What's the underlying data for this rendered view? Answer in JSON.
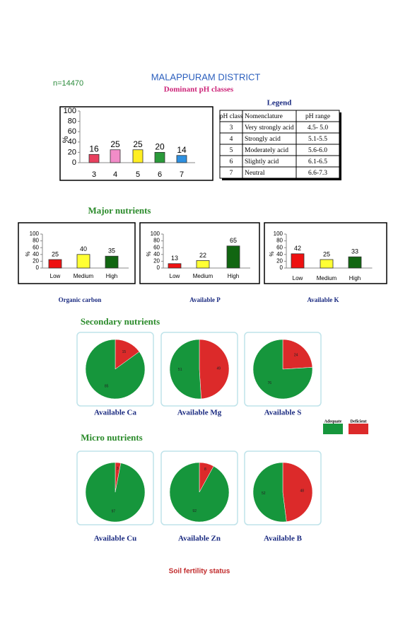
{
  "header": {
    "sample": "n=14470",
    "title": "MALAPPURAM DISTRICT",
    "subtitle": "Dominant pH classes"
  },
  "legend_table": {
    "title": "Legend",
    "columns": [
      "pH class",
      "Nomenclature",
      "pH range"
    ],
    "rows": [
      [
        "3",
        "Very strongly acid",
        "4.5- 5.0"
      ],
      [
        "4",
        "Strongly acid",
        "5.1-5.5"
      ],
      [
        "5",
        "Moderately acid",
        "5.6-6.0"
      ],
      [
        "6",
        "Slightly acid",
        "6.1-6.5"
      ],
      [
        "7",
        "Neutral",
        "6.6-7.3"
      ]
    ]
  },
  "sections": [
    "Major nutrients",
    "Secondary nutrients",
    "Micro nutrients"
  ],
  "pie_legend": {
    "labels": [
      "Adequate",
      "Deficient"
    ],
    "colors": [
      "#16963c",
      "#dc2a2a"
    ]
  },
  "footer": "Soil fertility status",
  "chart_data": [
    {
      "type": "bar",
      "categories": [
        "3",
        "4",
        "5",
        "6",
        "7"
      ],
      "values": [
        16,
        25,
        25,
        20,
        14
      ],
      "colors": [
        "#e8405e",
        "#f28cc8",
        "#ffee22",
        "#2a9a3a",
        "#2e90e0"
      ],
      "ylim": [
        0,
        100
      ],
      "yticks": [
        0,
        20,
        40,
        60,
        80,
        100
      ],
      "y_label": "%"
    },
    {
      "type": "bar",
      "title": "Organic carbon",
      "categories": [
        "Low",
        "Medium",
        "High"
      ],
      "values": [
        25,
        40,
        35
      ],
      "colors": [
        "#ee1111",
        "#ffff33",
        "#116611"
      ],
      "ylim": [
        0,
        100
      ],
      "yticks": [
        0,
        20,
        40,
        60,
        80,
        100
      ],
      "y_label": "%"
    },
    {
      "type": "bar",
      "title": "Available P",
      "categories": [
        "Low",
        "Medium",
        "High"
      ],
      "values": [
        13,
        22,
        65
      ],
      "colors": [
        "#ee1111",
        "#ffff33",
        "#116611"
      ],
      "ylim": [
        0,
        100
      ],
      "yticks": [
        0,
        20,
        40,
        60,
        80,
        100
      ],
      "y_label": "%"
    },
    {
      "type": "bar",
      "title": "Available K",
      "categories": [
        "Low",
        "Medium",
        "High"
      ],
      "values": [
        42,
        25,
        33
      ],
      "colors": [
        "#ee1111",
        "#ffff33",
        "#116611"
      ],
      "ylim": [
        0,
        100
      ],
      "yticks": [
        0,
        20,
        40,
        60,
        80,
        100
      ],
      "y_label": "%"
    },
    {
      "type": "pie",
      "title": "Available Ca",
      "values": [
        85,
        15
      ]
    },
    {
      "type": "pie",
      "title": "Available Mg",
      "values": [
        51,
        49
      ]
    },
    {
      "type": "pie",
      "title": "Available S",
      "values": [
        76,
        24
      ]
    },
    {
      "type": "pie",
      "title": "Available Cu",
      "values": [
        97,
        3
      ]
    },
    {
      "type": "pie",
      "title": "Available Zn",
      "values": [
        92,
        8
      ]
    },
    {
      "type": "pie",
      "title": "Available B",
      "values": [
        52,
        48
      ]
    }
  ]
}
